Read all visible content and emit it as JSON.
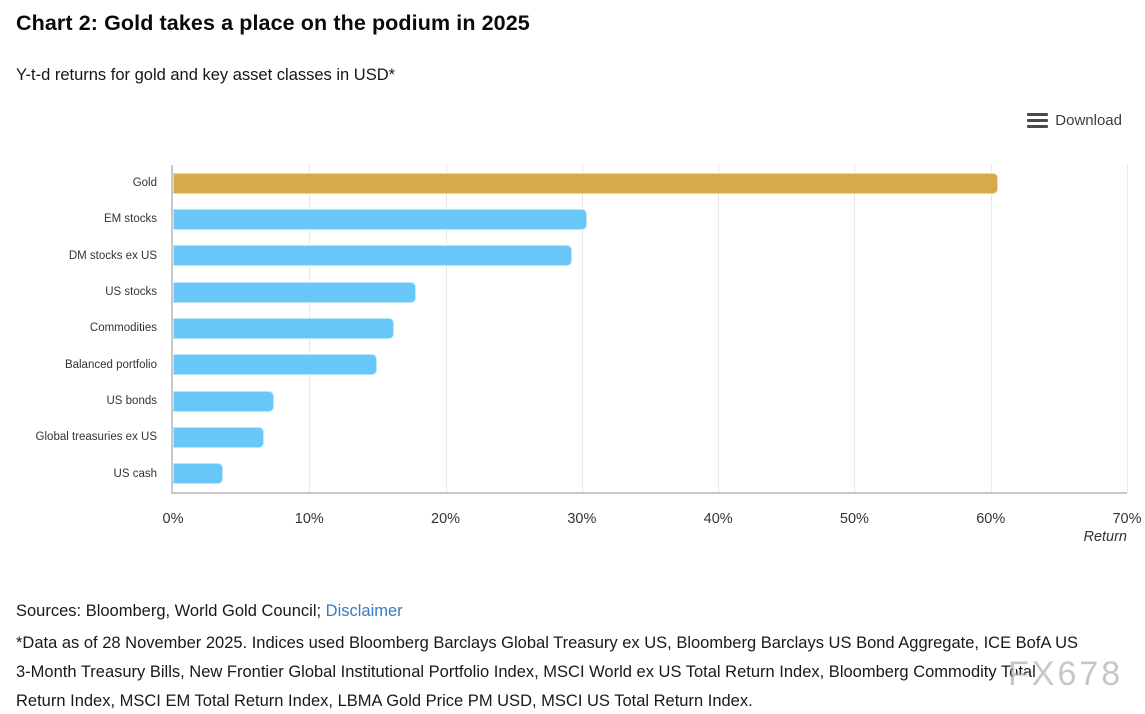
{
  "header": {
    "title": "Chart 2: Gold takes a place on the podium in 2025",
    "subtitle": "Y-t-d returns for gold and key asset classes in USD*"
  },
  "toolbar": {
    "download_label": "Download"
  },
  "chart_data": {
    "type": "bar",
    "orientation": "horizontal",
    "title": "Chart 2: Gold takes a place on the podium in 2025",
    "subtitle": "Y-t-d returns for gold and key asset classes in USD*",
    "categories": [
      "Gold",
      "EM stocks",
      "DM stocks ex US",
      "US stocks",
      "Commodities",
      "Balanced portfolio",
      "US bonds",
      "Global treasuries ex US",
      "US cash"
    ],
    "values": [
      60.5,
      30.4,
      29.3,
      17.8,
      16.2,
      15.0,
      7.4,
      6.7,
      3.7
    ],
    "unit": "%",
    "xlabel": "Return",
    "xlim": [
      0,
      70
    ],
    "x_ticks": [
      "0%",
      "10%",
      "20%",
      "30%",
      "40%",
      "50%",
      "60%",
      "70%"
    ],
    "grid": "vertical-dotted",
    "legend": "none",
    "highlight_category": "Gold",
    "bar_color_highlight": "#d7a94b",
    "bar_color_default": "#67c7f8"
  },
  "colors": {
    "gold": "#d7a94b",
    "blue": "#67c7f8",
    "axis": "#c8c8c8",
    "gridline": "#d2d2d2",
    "link": "#3a7bbd"
  },
  "footer": {
    "sources_prefix": "Sources: Bloomberg, World Gold Council; ",
    "disclaimer_label": "Disclaimer",
    "footnote_lines": [
      "*Data as of 28 November 2025. Indices used Bloomberg Barclays Global Treasury ex US, Bloomberg Barclays US Bond Aggregate, ICE BofA US",
      "3-Month Treasury Bills, New Frontier Global Institutional Portfolio Index, MSCI World ex US Total Return Index, Bloomberg Commodity Total",
      "Return Index, MSCI EM Total Return Index, LBMA Gold Price PM USD, MSCI US Total Return Index."
    ]
  },
  "watermark": "FX678"
}
